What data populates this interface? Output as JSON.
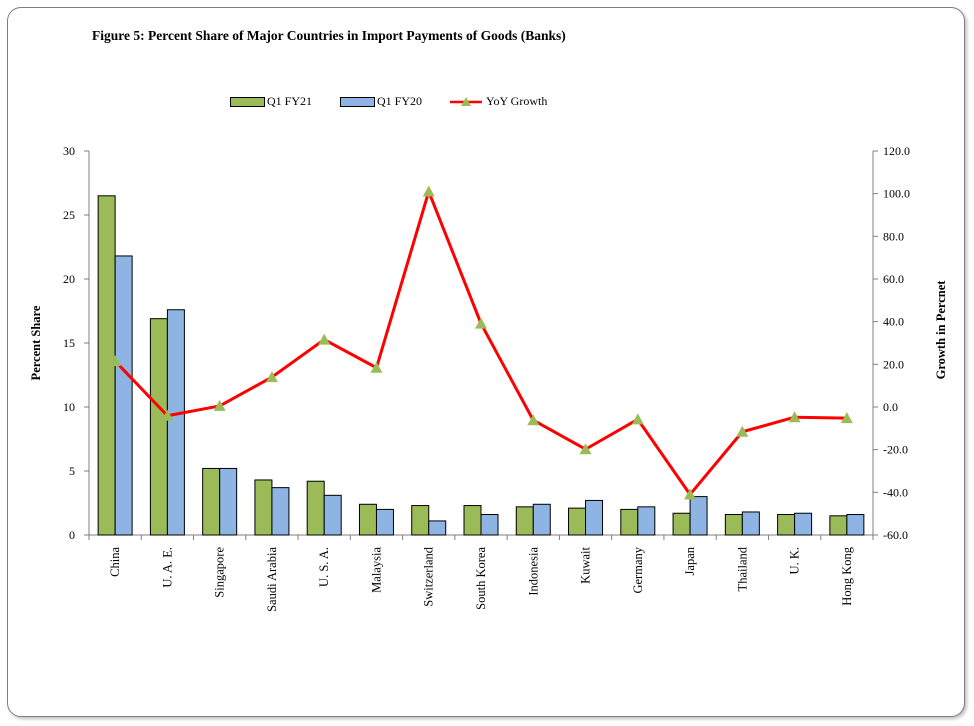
{
  "figure": {
    "title": "Figure 5: Percent Share of Major Countries in Import Payments of Goods  (Banks)"
  },
  "legend": {
    "items": [
      {
        "label": "Q1 FY21",
        "color": "#9bbb59"
      },
      {
        "label": "Q1 FY20",
        "color": "#8db4e2"
      },
      {
        "label": "YoY Growth",
        "color": "#ff0000"
      }
    ]
  },
  "chart_data": {
    "type": "bar",
    "title": "Figure 5: Percent Share of Major Countries in Import Payments of Goods  (Banks)",
    "categories": [
      "China",
      "U. A. E.",
      "Singapore",
      "Saudi Arabia",
      "U. S. A.",
      "Malaysia",
      "Switzerland",
      "South Korea",
      "Indonesia",
      "Kuwait",
      "Germany",
      "Japan",
      "Thailand",
      "U. K.",
      "Hong Kong"
    ],
    "series": [
      {
        "name": "Q1 FY21",
        "type": "bar",
        "axis": "left",
        "color": "#9bbb59",
        "values": [
          26.5,
          16.9,
          5.2,
          4.3,
          4.2,
          2.4,
          2.3,
          2.3,
          2.2,
          2.1,
          2.0,
          1.7,
          1.6,
          1.6,
          1.5
        ]
      },
      {
        "name": "Q1 FY20",
        "type": "bar",
        "axis": "left",
        "color": "#8db4e2",
        "values": [
          21.8,
          17.6,
          5.2,
          3.7,
          3.1,
          2.0,
          1.1,
          1.6,
          2.4,
          2.7,
          2.2,
          3.0,
          1.8,
          1.7,
          1.6
        ]
      },
      {
        "name": "YoY Growth",
        "type": "line",
        "axis": "right",
        "color": "#ff0000",
        "marker": "triangle",
        "marker_color": "#9bbb59",
        "values": [
          21.5,
          -4.1,
          0.5,
          14.0,
          31.6,
          18.4,
          101.0,
          39.1,
          -6.2,
          -19.8,
          -5.8,
          -41.0,
          -11.6,
          -4.8,
          -5.2
        ]
      }
    ],
    "ylabel": "Percent Share",
    "ylim": [
      0,
      30
    ],
    "yticks": [
      "0",
      "5",
      "10",
      "15",
      "20",
      "25",
      "30"
    ],
    "y2label": "Growth in Percnet",
    "y2lim": [
      -60,
      120
    ],
    "y2ticks": [
      "-60.0",
      "-40.0",
      "-20.0",
      "0.0",
      "20.0",
      "40.0",
      "60.0",
      "80.0",
      "100.0",
      "120.0"
    ],
    "grid": false,
    "legend_position": "top"
  }
}
